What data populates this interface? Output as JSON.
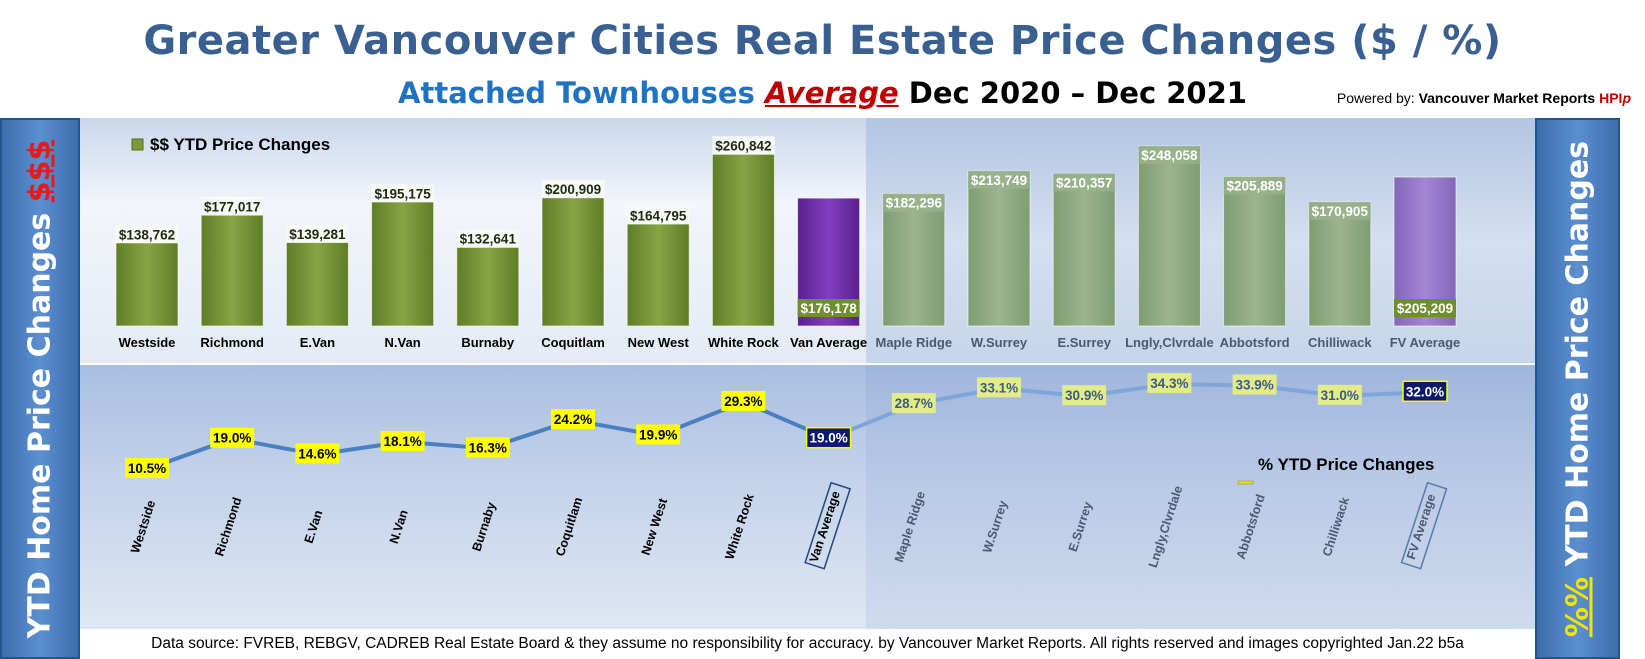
{
  "header": {
    "title": "Greater Vancouver Cities Real Estate Price Changes ($ / %)",
    "subtitle_part1": "Attached Townhouses",
    "subtitle_part2": "Average",
    "subtitle_part3": "Dec 2020 – Dec 2021",
    "powered_label": "Powered by:",
    "powered_brand": "Vancouver Market Reports",
    "powered_hpi": "HPI",
    "powered_p": "p"
  },
  "sidebars": {
    "left_text": "YTD Home Price Changes",
    "left_symbol": "$$$",
    "right_symbol": "%%",
    "right_text": "YTD Home Price  Changes"
  },
  "footer": {
    "text": "Data source: FVREB, REBGV, CADREB Real Estate Board & they assume no responsibility for accuracy. by Vancouver Market Reports. All rights reserved and  images copyrighted Jan.22 b5a"
  },
  "colors": {
    "bar_green": "#7c9a3c",
    "bar_light_green": "#93ae84",
    "bar_purple": "#7030a0",
    "bar_light_purple": "#9878c8",
    "line_blue": "#4a7fc1",
    "label_yellow": "#ffff00",
    "label_navy": "#0c1a6b",
    "panel_vancouver": "#d8e2f1",
    "panel_fraser": "#b8cbe6"
  },
  "chart_data": [
    {
      "type": "bar",
      "title": "$$ YTD Price Changes",
      "legend": "top-left",
      "categories": [
        "Westside",
        "Richmond",
        "E.Van",
        "N.Van",
        "Burnaby",
        "Coquitlam",
        "New West",
        "White Rock",
        "Van Average",
        "Maple Ridge",
        "W.Surrey",
        "E.Surrey",
        "Lngly,Clvrdale",
        "Abbotsford",
        "Chilliwack",
        "FV Average"
      ],
      "values": [
        138762,
        177017,
        139281,
        195175,
        132641,
        200909,
        164795,
        260842,
        176178,
        182296,
        213749,
        210357,
        248058,
        205889,
        170905,
        205209
      ],
      "value_labels": [
        "$138,762",
        "$177,017",
        "$139,281",
        "$195,175",
        "$132,641",
        "$200,909",
        "$164,795",
        "$260,842",
        "$176,178",
        "$182,296",
        "$213,749",
        "$210,357",
        "$248,058",
        "$205,889",
        "$170,905",
        "$205,209"
      ],
      "series": [
        {
          "name": "$$ YTD Price Changes",
          "values": [
            138762,
            177017,
            139281,
            195175,
            132641,
            200909,
            164795,
            260842,
            176178,
            182296,
            213749,
            210357,
            248058,
            205889,
            170905,
            205209
          ]
        }
      ],
      "ylim": [
        0,
        270000
      ]
    },
    {
      "type": "line",
      "title": "% YTD Price Changes",
      "legend": "right",
      "categories": [
        "Westside",
        "Richmond",
        "E.Van",
        "N.Van",
        "Burnaby",
        "Coquitlam",
        "New West",
        "White Rock",
        "Van Average",
        "Maple Ridge",
        "W.Surrey",
        "E.Surrey",
        "Lngly,Clvrdale",
        "Abbotsford",
        "Chilliwack",
        "FV Average"
      ],
      "values": [
        10.5,
        19.0,
        14.6,
        18.1,
        16.3,
        24.2,
        19.9,
        29.3,
        19.0,
        28.7,
        33.1,
        30.9,
        34.3,
        33.9,
        31.0,
        32.0
      ],
      "value_labels": [
        "10.5%",
        "19.0%",
        "14.6%",
        "18.1%",
        "16.3%",
        "24.2%",
        "19.9%",
        "29.3%",
        "19.0%",
        "28.7%",
        "33.1%",
        "30.9%",
        "34.3%",
        "33.9%",
        "31.0%",
        "32.0%"
      ],
      "series": [
        {
          "name": "% YTD Price Changes",
          "values": [
            10.5,
            19.0,
            14.6,
            18.1,
            16.3,
            24.2,
            19.9,
            29.3,
            19.0,
            28.7,
            33.1,
            30.9,
            34.3,
            33.9,
            31.0,
            32.0
          ]
        }
      ],
      "ylim": [
        8,
        36
      ]
    }
  ]
}
